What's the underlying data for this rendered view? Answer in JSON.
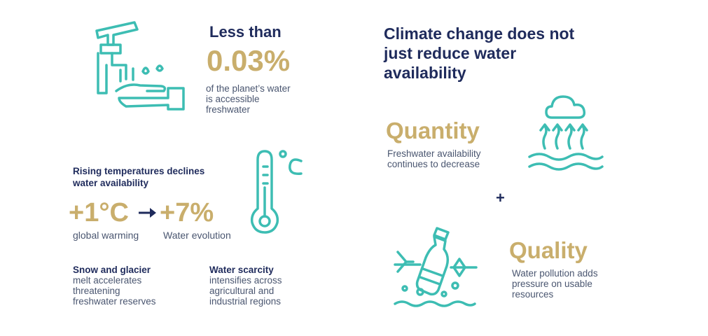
{
  "left": {
    "freshwater": {
      "title": "Less than",
      "value": "0.03%",
      "desc": [
        "of the planet’s water",
        "is accessible",
        "freshwater"
      ],
      "icon": "faucet-hand-icon"
    },
    "temperature": {
      "title": [
        "Rising temperatures declines",
        "water availability"
      ],
      "from_value": "+1°C",
      "to_value": "+7%",
      "from_label": "global warming",
      "to_label": "Water evolution",
      "icon": "thermometer-icon"
    },
    "glacier": {
      "title": "Snow and glacier",
      "desc": [
        "melt accelerates",
        "threatening",
        "freshwater reserves"
      ]
    },
    "scarcity": {
      "title": "Water scarcity",
      "desc": [
        "intensifies across",
        "agricultural and",
        "industrial regions"
      ]
    }
  },
  "right": {
    "heading": [
      "Climate change does not",
      "just reduce water",
      "availability"
    ],
    "quantity": {
      "title": "Quantity",
      "desc": [
        "Freshwater availability",
        "continues to decrease"
      ],
      "icon": "evaporation-cloud-icon"
    },
    "plus": "+",
    "quality": {
      "title": "Quality",
      "desc": [
        "Water pollution adds",
        "pressure on usable",
        "resources"
      ],
      "icon": "polluted-water-bottle-icon"
    }
  },
  "colors": {
    "teal": "#3dbdb3",
    "navy": "#1f2b5c",
    "gold": "#c9ae6c",
    "gray": "#4a5670"
  }
}
